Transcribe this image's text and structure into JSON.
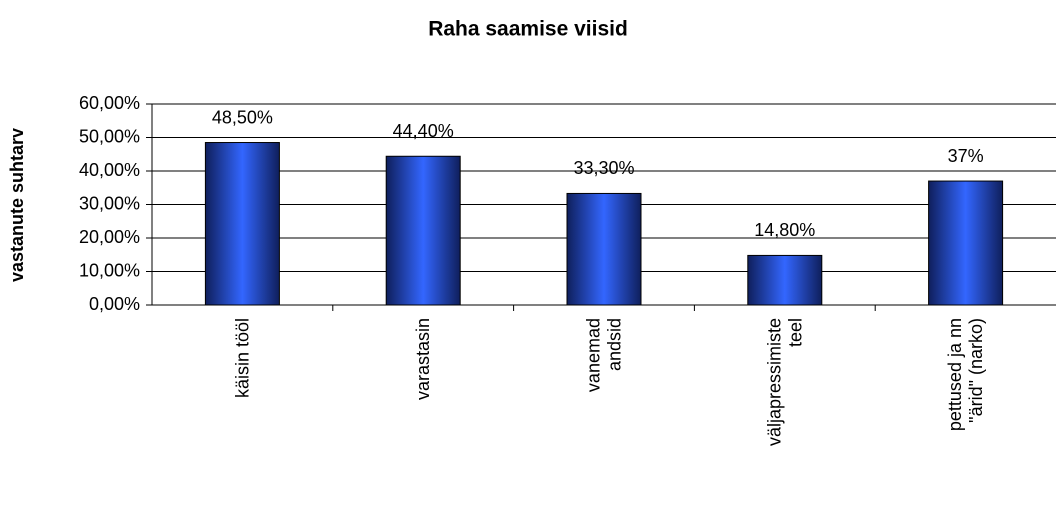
{
  "chart_data": {
    "type": "bar",
    "title": "Raha saamise viisid",
    "ylabel": "vastanute suhtarv",
    "categories": [
      [
        "käisin tööl"
      ],
      [
        "varastasin"
      ],
      [
        "vanemad",
        "andsid"
      ],
      [
        "väljapressimiste",
        "teel"
      ],
      [
        "pettused ja nn",
        "\"ärid\" (narko)"
      ]
    ],
    "values": [
      48.5,
      44.4,
      33.3,
      14.8,
      37
    ],
    "value_labels": [
      "48,50%",
      "44,40%",
      "33,30%",
      "14,80%",
      "37%"
    ],
    "color": "#3366ff",
    "ylim": [
      0,
      60
    ],
    "yticks": [
      {
        "value": 0,
        "label": "0,00%"
      },
      {
        "value": 10,
        "label": "10,00%"
      },
      {
        "value": 20,
        "label": "20,00%"
      },
      {
        "value": 30,
        "label": "30,00%"
      },
      {
        "value": 40,
        "label": "40,00%"
      },
      {
        "value": 50,
        "label": "50,00%"
      },
      {
        "value": 60,
        "label": "60,00%"
      }
    ],
    "grid": true
  }
}
